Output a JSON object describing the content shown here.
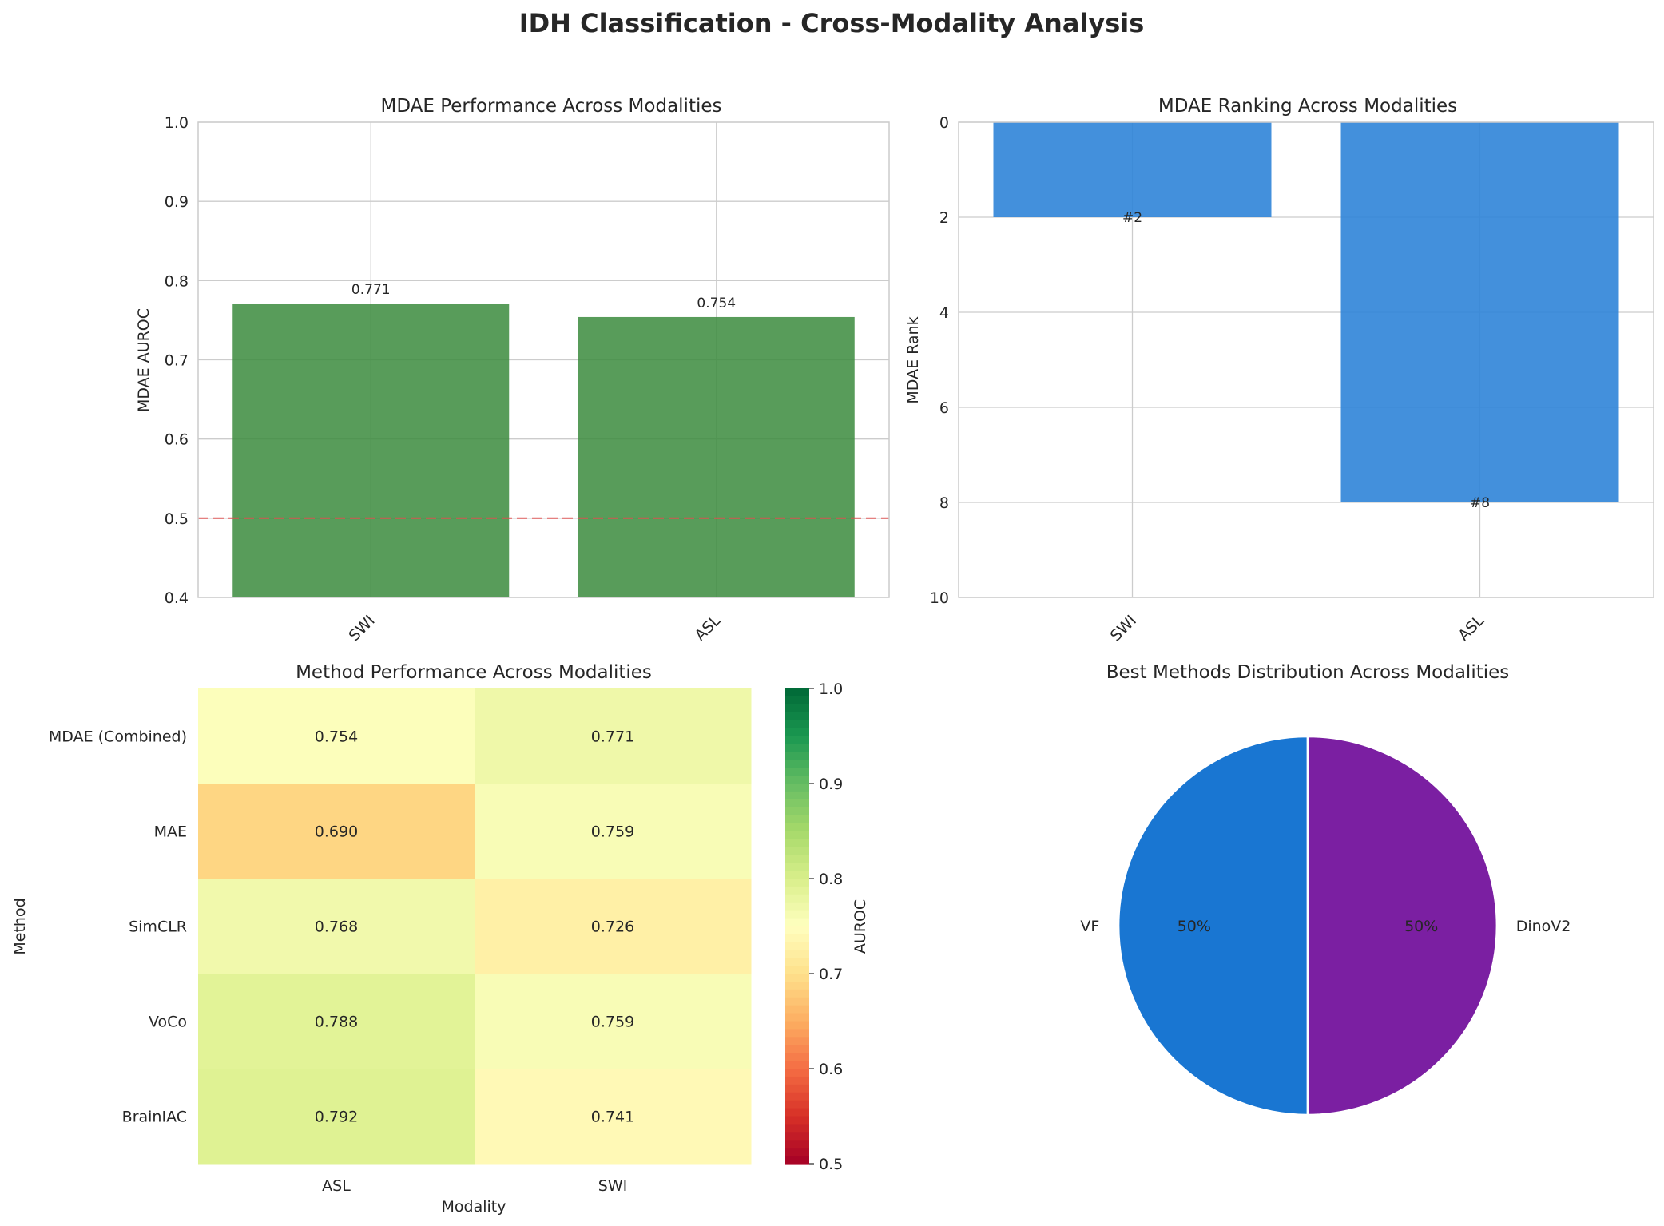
{
  "figure_title": "IDH Classification - Cross-Modality Analysis",
  "chart_data": [
    {
      "type": "bar",
      "title": "MDAE Performance Across Modalities",
      "ylabel": "MDAE AUROC",
      "xlabel": "",
      "categories": [
        "SWI",
        "ASL"
      ],
      "values": [
        0.771,
        0.754
      ],
      "value_labels": [
        "0.771",
        "0.754"
      ],
      "ylim": [
        0.4,
        1.0
      ],
      "yticks": [
        "0.4",
        "0.5",
        "0.6",
        "0.7",
        "0.8",
        "0.9",
        "1.0"
      ],
      "reference_line": 0.5,
      "bar_color": "#3b8b3d",
      "reference_color": "#e05050",
      "grid": true
    },
    {
      "type": "bar",
      "title": "MDAE Ranking Across Modalities",
      "ylabel": "MDAE Rank",
      "xlabel": "",
      "categories": [
        "SWI",
        "ASL"
      ],
      "values": [
        2,
        8
      ],
      "value_labels": [
        "#2",
        "#8"
      ],
      "ylim": [
        10,
        0
      ],
      "yticks": [
        "0",
        "2",
        "4",
        "6",
        "8",
        "10"
      ],
      "inverted_y": true,
      "bar_color": "#2f84d8",
      "grid": true
    },
    {
      "type": "heatmap",
      "title": "Method Performance Across Modalities",
      "xlabel": "Modality",
      "ylabel": "Method",
      "columns": [
        "ASL",
        "SWI"
      ],
      "rows": [
        "MDAE (Combined)",
        "MAE",
        "SimCLR",
        "VoCo",
        "BrainIAC"
      ],
      "values": [
        [
          0.754,
          0.771
        ],
        [
          0.69,
          0.759
        ],
        [
          0.768,
          0.726
        ],
        [
          0.788,
          0.759
        ],
        [
          0.792,
          0.741
        ]
      ],
      "cell_labels": [
        [
          "0.754",
          "0.771"
        ],
        [
          "0.690",
          "0.759"
        ],
        [
          "0.768",
          "0.726"
        ],
        [
          "0.788",
          "0.759"
        ],
        [
          "0.792",
          "0.741"
        ]
      ],
      "colormap": "RdYlGn",
      "vmin": 0.5,
      "vmax": 1.0,
      "colorbar_label": "AUROC",
      "colorbar_ticks": [
        "0.5",
        "0.6",
        "0.7",
        "0.8",
        "0.9",
        "1.0"
      ]
    },
    {
      "type": "pie",
      "title": "Best Methods Distribution Across Modalities",
      "labels": [
        "VF",
        "DinoV2"
      ],
      "values": [
        50,
        50
      ],
      "pct_labels": [
        "50%",
        "50%"
      ],
      "colors": [
        "#1976d2",
        "#7b1fa2"
      ]
    }
  ]
}
